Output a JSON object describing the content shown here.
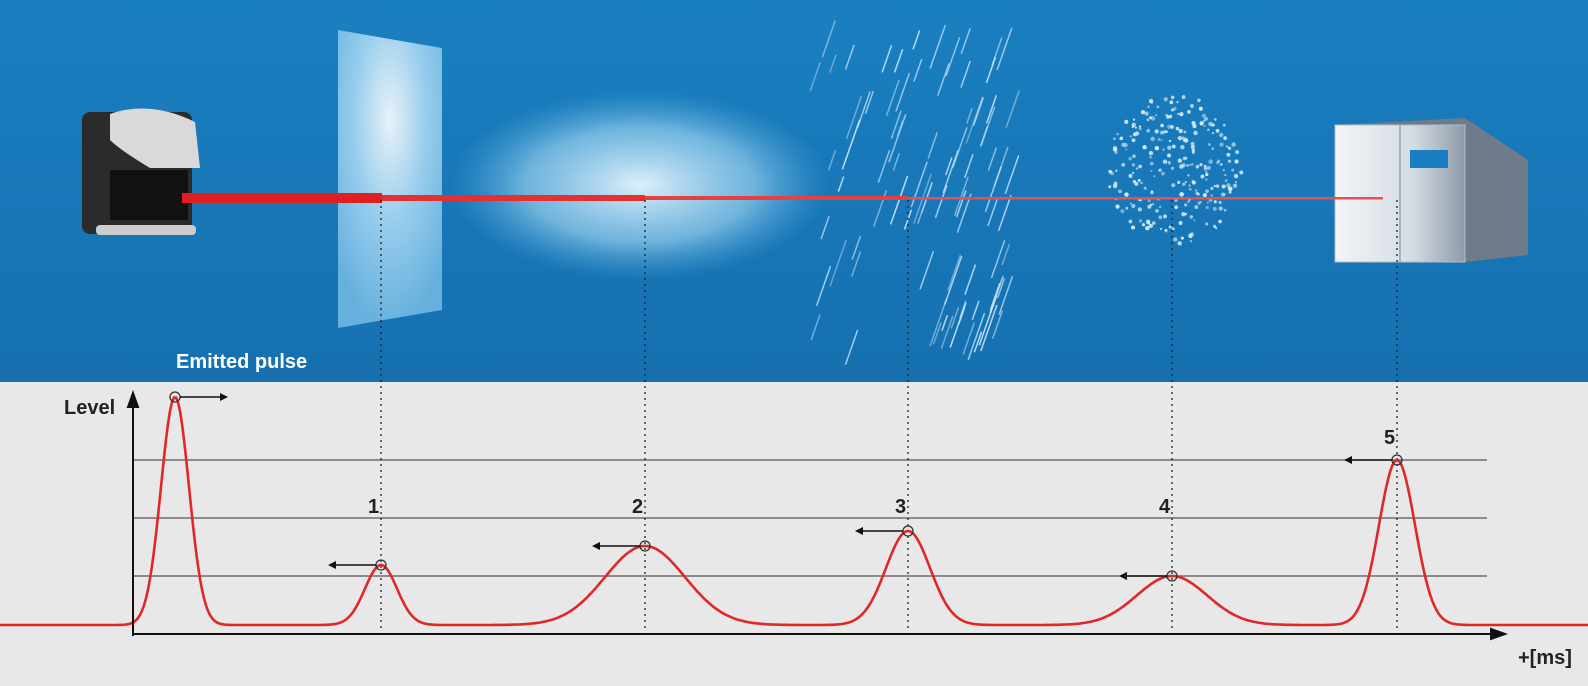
{
  "scene": {
    "emitted_label": "Emitted pulse"
  },
  "graph": {
    "y_axis_label": "Level",
    "x_axis_label": "+[ms]",
    "echoes": [
      {
        "label": "1"
      },
      {
        "label": "2"
      },
      {
        "label": "3"
      },
      {
        "label": "4"
      },
      {
        "label": "5"
      }
    ]
  }
}
